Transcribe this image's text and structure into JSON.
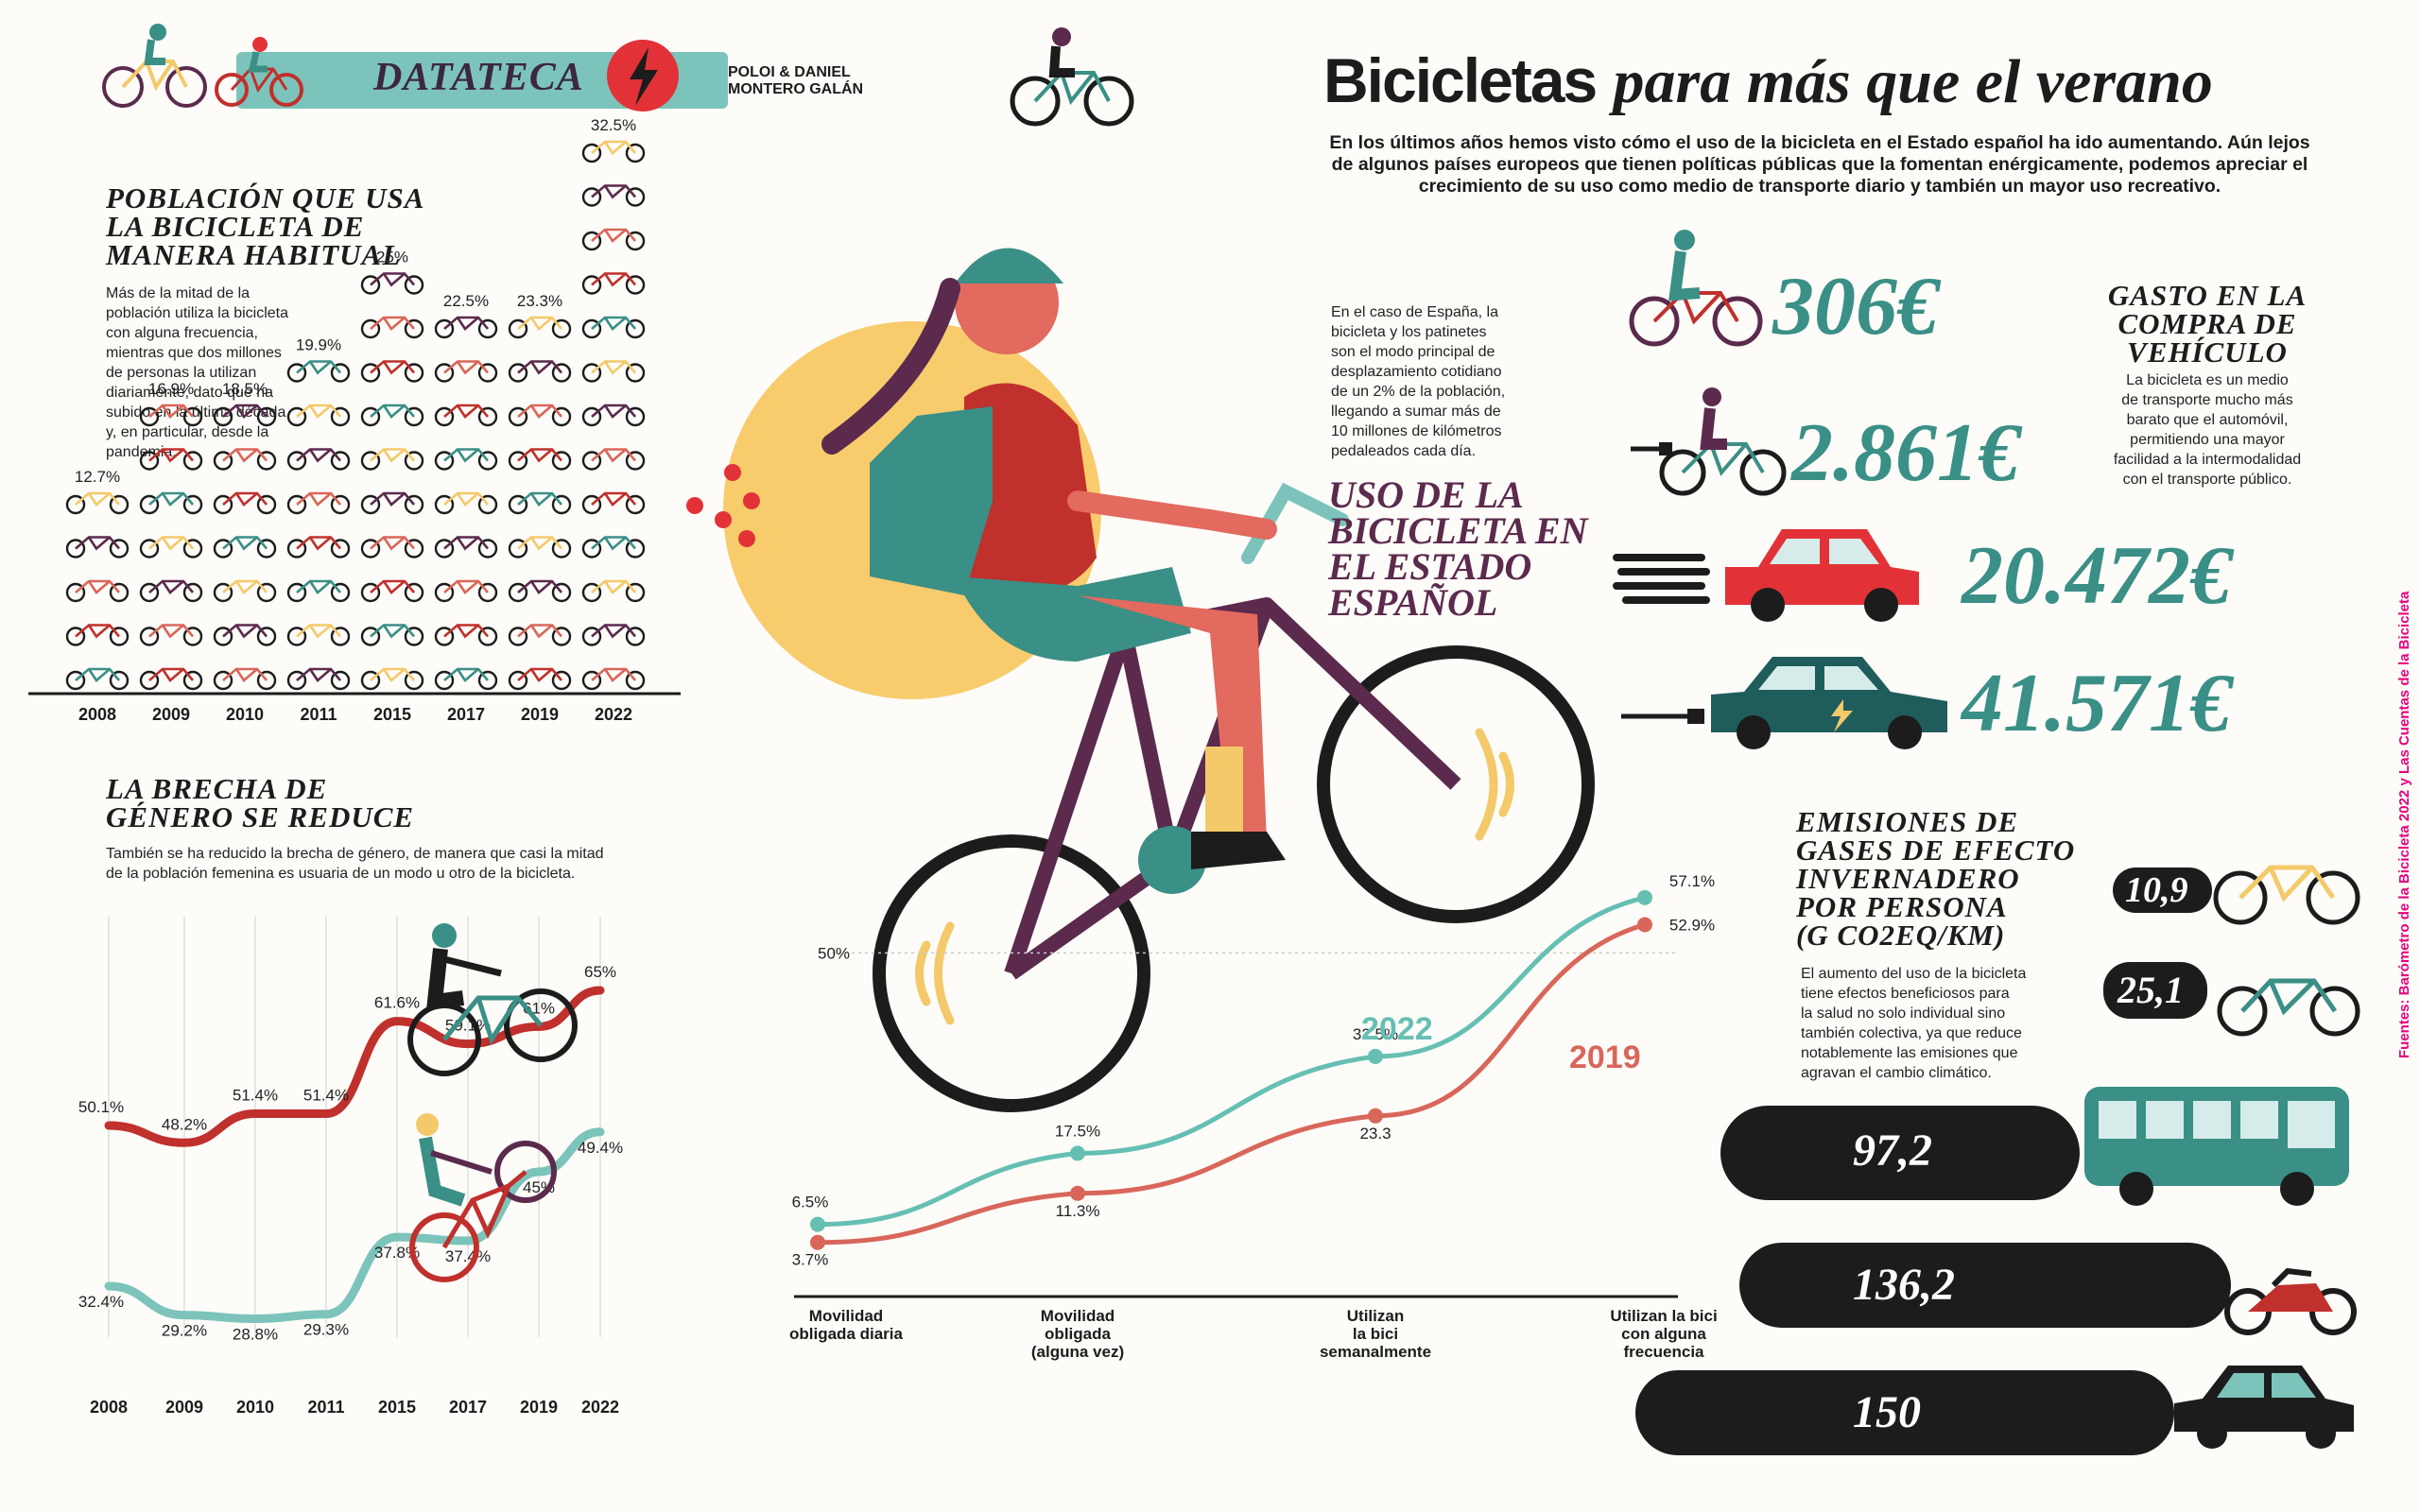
{
  "header": {
    "section": "DATATECA",
    "authors_line1": "POLOI & DANIEL",
    "authors_line2": "MONTERO GALÁN"
  },
  "title": {
    "part1": "Bicicletas",
    "part2": "para más que el verano",
    "intro": "En los últimos años hemos visto cómo el uso de la bicicleta en el Estado español ha ido aumentando. Aún lejos de algunos países europeos que tienen políticas públicas que la fomentan enérgicamente, podemos apreciar el crecimiento de su uso como medio de transporte diario y también un mayor uso recreativo."
  },
  "population": {
    "heading": [
      "POBLACIÓN QUE USA",
      "LA BICICLETA DE",
      "MANERA HABITUAL"
    ],
    "body": [
      "Más de la mitad de la",
      "población utiliza la bicicleta",
      "con alguna frecuencia,",
      "mientras que dos millones",
      "de personas la utilizan",
      "diariamente, dato que ha",
      "subido en la última década",
      "y, en particular, desde la",
      "pandemia."
    ]
  },
  "gender": {
    "heading": [
      "LA BRECHA DE",
      "GÉNERO SE REDUCE"
    ],
    "body": [
      "También se ha reducido la brecha de género, de manera que casi la mitad",
      "de la población femenina es usuaria de un modo u otro de la bicicleta."
    ]
  },
  "spain": {
    "body": [
      "En el caso de España, la",
      "bicicleta y los patinetes",
      "son el modo principal de",
      "desplazamiento cotidiano",
      "de un 2% de la población,",
      "llegando a sumar más de",
      "10 millones de kilómetros",
      "pedaleados cada día."
    ],
    "heading": [
      "USO DE LA",
      "BICICLETA EN",
      "EL ESTADO",
      "ESPAÑOL"
    ]
  },
  "cost": {
    "heading": [
      "GASTO EN LA",
      "COMPRA DE",
      "VEHÍCULO"
    ],
    "body": [
      "La bicicleta es un medio",
      "de transporte mucho más",
      "barato que el automóvil,",
      "permitiendo una mayor",
      "facilidad a la intermodalidad",
      "con el transporte público."
    ],
    "items": [
      {
        "vehicle": "bicicleta",
        "price": "306€"
      },
      {
        "vehicle": "bicicleta eléctrica",
        "price": "2.861€"
      },
      {
        "vehicle": "coche",
        "price": "20.472€"
      },
      {
        "vehicle": "coche eléctrico",
        "price": "41.571€"
      }
    ]
  },
  "emissions": {
    "heading": [
      "EMISIONES DE",
      "GASES DE EFECTO",
      "INVERNADERO",
      "POR PERSONA",
      "(G CO2EQ/KM)"
    ],
    "body": [
      "El aumento del uso de la bicicleta",
      "tiene efectos beneficiosos para",
      "la salud no solo individual sino",
      "también colectiva, ya que reduce",
      "notablemente las emisiones que",
      "agravan el cambio climático."
    ],
    "items": [
      {
        "vehicle": "bicicleta",
        "value": "10,9"
      },
      {
        "vehicle": "bicicleta eléctrica",
        "value": "25,1"
      },
      {
        "vehicle": "autobús",
        "value": "97,2"
      },
      {
        "vehicle": "moto",
        "value": "136,2"
      },
      {
        "vehicle": "coche",
        "value": "150"
      }
    ]
  },
  "sources": "Fuentes: Barómetro de la Bicicleta 2022 y Las Cuentas de la Bicicleta",
  "colors": {
    "teal": "#3a8f86",
    "red": "#c0302c",
    "salmon": "#d9665a",
    "plum": "#5b2a4d",
    "yellow": "#f4c96a",
    "magenta": "#e6007e"
  },
  "chart_data": [
    {
      "type": "bar",
      "categories": [
        "2008",
        "2009",
        "2010",
        "2011",
        "2015",
        "2017",
        "2019",
        "2022"
      ],
      "values": [
        12.7,
        16.9,
        18.5,
        19.9,
        25,
        22.5,
        23.3,
        32.5
      ],
      "labels": [
        "12.7%",
        "16.9%",
        "18.5%",
        "19.9%",
        "25%",
        "22.5%",
        "23.3%",
        "32.5%"
      ]
    },
    {
      "type": "line",
      "categories": [
        "2008",
        "2009",
        "2010",
        "2011",
        "2015",
        "2017",
        "2019",
        "2022"
      ],
      "series": [
        {
          "values": [
            50.1,
            48.2,
            51.4,
            51.4,
            61.6,
            59.1,
            61,
            65
          ],
          "labels": [
            "50.1%",
            "48.2%",
            "51.4%",
            "51.4%",
            "61.6%",
            "59.1%",
            "61%",
            "65%"
          ],
          "color": "#c0302c"
        },
        {
          "values": [
            32.4,
            29.2,
            28.8,
            29.3,
            37.8,
            37.4,
            45,
            49.4
          ],
          "labels": [
            "32.4%",
            "29.2%",
            "28.8%",
            "29.3%",
            "37.8%",
            "37.4%",
            "45%",
            "49.4%"
          ],
          "color": "#7cc4bb"
        }
      ]
    },
    {
      "type": "line",
      "categories": [
        "Movilidad obligada diaria",
        "Movilidad obligada (alguna vez)",
        "Utilizan la bici semanalmente",
        "Utilizan la bici con alguna frecuencia"
      ],
      "category_lines": [
        [
          "Movilidad",
          "obligada diaria"
        ],
        [
          "Movilidad",
          "obligada",
          "(alguna vez)"
        ],
        [
          "Utilizan",
          "la bici",
          "semanalmente"
        ],
        [
          "Utilizan la bici",
          "con alguna",
          "frecuencia"
        ]
      ],
      "reference": {
        "value": 50,
        "label": "50%"
      },
      "series": [
        {
          "name": "2022",
          "values": [
            6.5,
            17.5,
            32.5,
            57.1
          ],
          "labels": [
            "6.5%",
            "17.5%",
            "32.5%",
            "57.1%"
          ],
          "color": "#66bfb3"
        },
        {
          "name": "2019",
          "values": [
            3.7,
            11.3,
            23.3,
            52.9
          ],
          "labels": [
            "3.7%",
            "11.3%",
            "23.3",
            "52.9%"
          ],
          "color": "#d9665a"
        }
      ]
    }
  ]
}
